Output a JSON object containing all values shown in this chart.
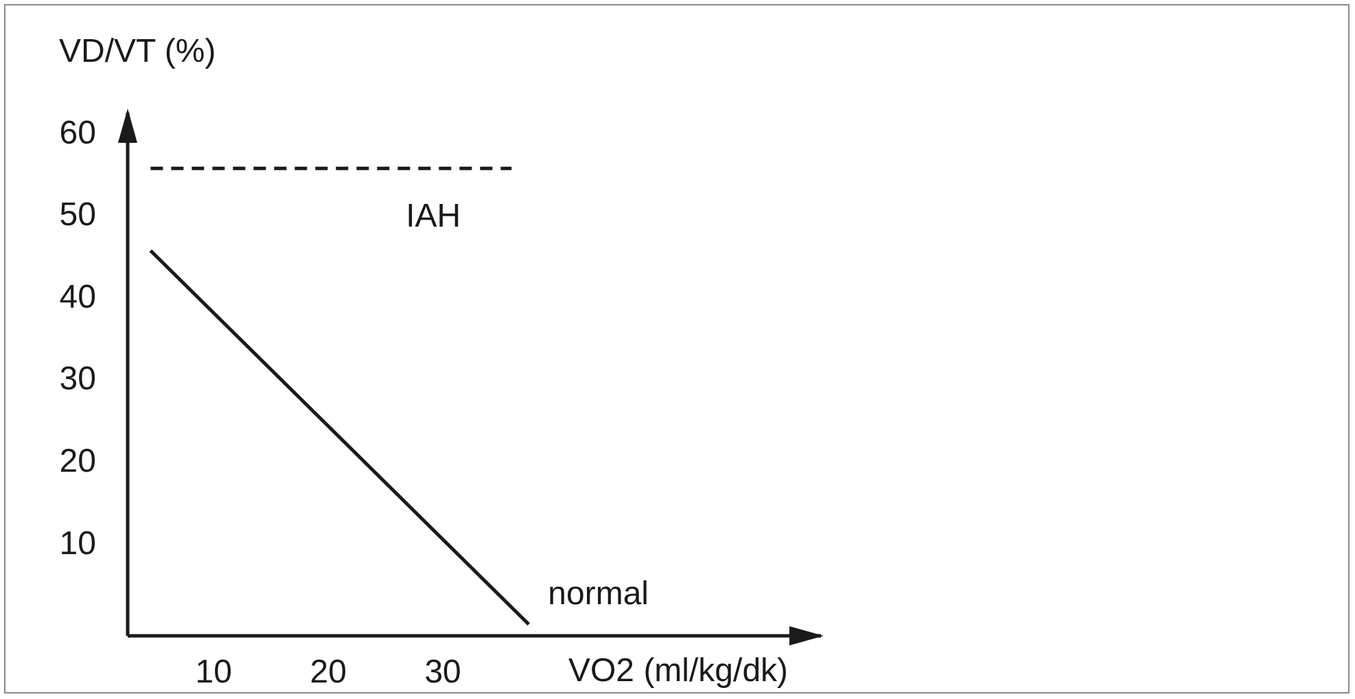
{
  "chart_data": {
    "type": "line",
    "xlabel": "VO2 (ml/kg/dk)",
    "ylabel": "VD/VT (%)",
    "series": [
      {
        "name": "normal",
        "color": "#1a1a1a",
        "x": [
          4.5,
          37.5
        ],
        "values": [
          45.5,
          0
        ]
      },
      {
        "name": "IAH",
        "color": "#1a1a1a",
        "line_style": "dashed",
        "x": [
          4.5,
          36
        ],
        "values": [
          55.5,
          55.5
        ]
      }
    ],
    "xlim": [
      2.5,
      63
    ],
    "xticks": [
      10,
      20,
      30
    ],
    "ylim": [
      -1.4,
      62.3
    ],
    "yticks": [
      10,
      20,
      30,
      40,
      50,
      60
    ],
    "marker": "none",
    "line_style": "solid"
  }
}
